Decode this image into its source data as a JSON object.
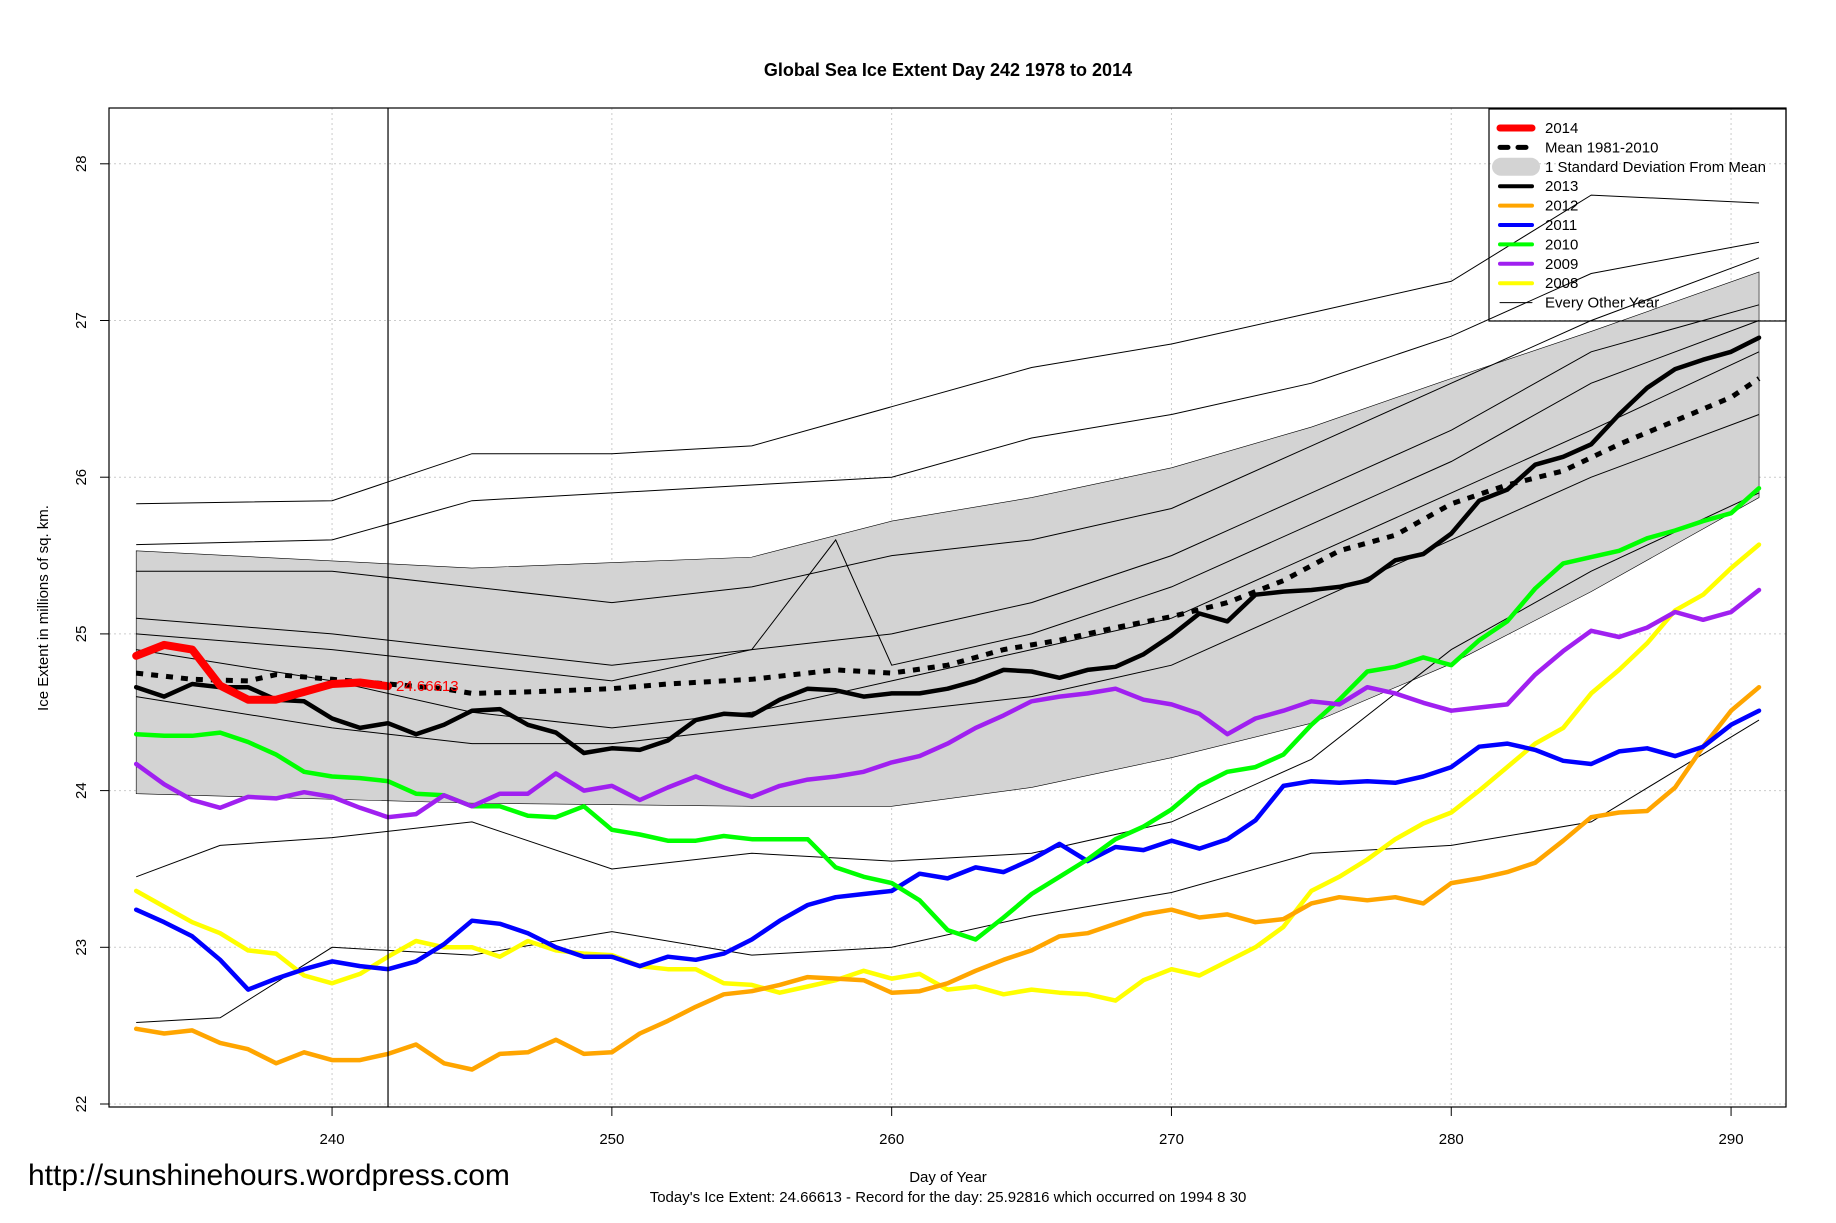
{
  "chart_data": {
    "type": "line",
    "title": "Global Sea Ice Extent Day 242 1978 to 2014",
    "xlabel": "Day of Year",
    "ylabel": "Ice Extent in millions of sq. km.",
    "subtitle": "Today's Ice Extent: 24.66613  - Record for the day: 25.92816 which occurred on 1994 8 30",
    "watermark": "http://sunshinehours.wordpress.com",
    "xlim": [
      233,
      291
    ],
    "ylim": [
      22,
      28
    ],
    "xticks": [
      240,
      250,
      260,
      270,
      280,
      290
    ],
    "yticks": [
      22,
      23,
      24,
      25,
      26,
      27,
      28
    ],
    "grid": true,
    "legend_position": "top-right",
    "current_day": 242,
    "current_value_label": "24.66613",
    "legend": [
      {
        "label": "2014",
        "color": "#ff0000",
        "style": "thick"
      },
      {
        "label": "Mean 1981-2010",
        "color": "#000000",
        "style": "dashed"
      },
      {
        "label": "1 Standard Deviation From Mean",
        "color": "#d3d3d3",
        "style": "band"
      },
      {
        "label": "2013",
        "color": "#000000",
        "style": "line"
      },
      {
        "label": "2012",
        "color": "#ffa500",
        "style": "line"
      },
      {
        "label": "2011",
        "color": "#0000ff",
        "style": "line"
      },
      {
        "label": "2010",
        "color": "#00ff00",
        "style": "line"
      },
      {
        "label": "2009",
        "color": "#a020f0",
        "style": "line"
      },
      {
        "label": "2008",
        "color": "#ffff00",
        "style": "line"
      },
      {
        "label": "Every Other Year",
        "color": "#000000",
        "style": "thin"
      }
    ],
    "sd_band": {
      "x": [
        233,
        245,
        255,
        260,
        265,
        270,
        275,
        280,
        285,
        291
      ],
      "upper": [
        25.53,
        25.42,
        25.49,
        25.72,
        25.87,
        26.06,
        26.32,
        26.63,
        26.93,
        27.31
      ],
      "lower": [
        23.98,
        23.92,
        23.9,
        23.9,
        24.02,
        24.21,
        24.43,
        24.81,
        25.27,
        25.87
      ]
    },
    "other_years": [
      {
        "x": [
          233,
          240,
          245,
          250,
          255,
          260,
          265,
          270,
          275,
          280,
          285,
          291
        ],
        "y": [
          25.83,
          25.85,
          26.15,
          26.15,
          26.2,
          26.45,
          26.7,
          26.85,
          27.05,
          27.25,
          27.8,
          27.75
        ]
      },
      {
        "x": [
          233,
          240,
          245,
          250,
          255,
          260,
          265,
          270,
          275,
          280,
          285,
          291
        ],
        "y": [
          25.57,
          25.6,
          25.85,
          25.9,
          25.95,
          26.0,
          26.25,
          26.4,
          26.6,
          26.9,
          27.3,
          27.5
        ]
      },
      {
        "x": [
          233,
          240,
          245,
          250,
          255,
          260,
          265,
          270,
          275,
          280,
          285,
          291
        ],
        "y": [
          25.4,
          25.4,
          25.3,
          25.2,
          25.3,
          25.5,
          25.6,
          25.8,
          26.2,
          26.6,
          27.0,
          27.4
        ]
      },
      {
        "x": [
          233,
          240,
          245,
          250,
          255,
          260,
          265,
          270,
          275,
          280,
          285,
          291
        ],
        "y": [
          25.1,
          25.0,
          24.9,
          24.8,
          24.9,
          25.0,
          25.2,
          25.5,
          25.9,
          26.3,
          26.8,
          27.1
        ]
      },
      {
        "x": [
          233,
          240,
          245,
          250,
          255,
          260,
          265,
          270,
          275,
          280,
          285,
          291
        ],
        "y": [
          24.9,
          24.7,
          24.5,
          24.4,
          24.5,
          24.7,
          24.9,
          25.1,
          25.5,
          25.9,
          26.3,
          26.8
        ]
      },
      {
        "x": [
          233,
          240,
          245,
          250,
          255,
          260,
          265,
          270,
          275,
          280,
          285,
          291
        ],
        "y": [
          24.6,
          24.4,
          24.3,
          24.3,
          24.4,
          24.5,
          24.6,
          24.8,
          25.2,
          25.6,
          26.0,
          26.4
        ]
      },
      {
        "x": [
          233,
          236,
          240,
          245,
          250,
          255,
          260,
          265,
          270,
          275,
          280,
          285,
          291
        ],
        "y": [
          23.45,
          23.65,
          23.7,
          23.8,
          23.5,
          23.6,
          23.55,
          23.6,
          23.8,
          24.2,
          24.9,
          25.4,
          25.9
        ]
      },
      {
        "x": [
          233,
          236,
          240,
          245,
          250,
          255,
          260,
          265,
          270,
          275,
          280,
          285,
          291
        ],
        "y": [
          22.52,
          22.55,
          23.0,
          22.95,
          23.1,
          22.95,
          23.0,
          23.2,
          23.35,
          23.6,
          23.65,
          23.8,
          24.45
        ]
      },
      {
        "x": [
          233,
          240,
          245,
          250,
          255,
          258,
          260,
          265,
          270,
          275,
          280,
          285,
          291
        ],
        "y": [
          25.0,
          24.9,
          24.8,
          24.7,
          24.9,
          25.6,
          24.8,
          25.0,
          25.3,
          25.7,
          26.1,
          26.6,
          27.0
        ]
      }
    ],
    "series": [
      {
        "name": "Mean 1981-2010",
        "color": "#000000",
        "dash": true,
        "x": [
          233,
          235,
          237,
          238,
          240,
          242,
          244,
          245,
          247,
          250,
          252,
          255,
          258,
          260,
          262,
          264,
          266,
          268,
          270,
          272,
          274,
          276,
          278,
          280,
          282,
          284,
          286,
          288,
          290,
          291
        ],
        "y": [
          24.75,
          24.71,
          24.7,
          24.74,
          24.71,
          24.68,
          24.65,
          24.62,
          24.63,
          24.65,
          24.68,
          24.71,
          24.77,
          24.75,
          24.8,
          24.9,
          24.96,
          25.04,
          25.11,
          25.2,
          25.34,
          25.53,
          25.63,
          25.83,
          25.95,
          26.04,
          26.21,
          26.36,
          26.51,
          26.63
        ]
      },
      {
        "name": "2008",
        "color": "#ffff00",
        "x": [
          233,
          234,
          235,
          236,
          237,
          238,
          239,
          240,
          241,
          242,
          243,
          244,
          245,
          246,
          247,
          248,
          249,
          250,
          251,
          252,
          253,
          254,
          255,
          256,
          257,
          258,
          259,
          260,
          261,
          262,
          263,
          264,
          265,
          266,
          267,
          268,
          269,
          270,
          271,
          272,
          273,
          274,
          275,
          276,
          277,
          278,
          279,
          280,
          281,
          282,
          283,
          284,
          285,
          286,
          287,
          288,
          289,
          290,
          291
        ],
        "y": [
          23.36,
          23.26,
          23.16,
          23.09,
          22.98,
          22.96,
          22.82,
          22.77,
          22.83,
          22.94,
          23.04,
          23.0,
          23.0,
          22.94,
          23.04,
          22.98,
          22.96,
          22.95,
          22.88,
          22.86,
          22.86,
          22.77,
          22.76,
          22.71,
          22.75,
          22.79,
          22.85,
          22.8,
          22.83,
          22.73,
          22.75,
          22.7,
          22.73,
          22.71,
          22.7,
          22.66,
          22.79,
          22.86,
          22.82,
          22.91,
          23.0,
          23.13,
          23.36,
          23.45,
          23.56,
          23.69,
          23.79,
          23.86,
          24.0,
          24.15,
          24.3,
          24.4,
          24.62,
          24.77,
          24.94,
          25.15,
          25.25,
          25.42,
          25.57
        ]
      },
      {
        "name": "2012",
        "color": "#ffa500",
        "x": [
          233,
          234,
          235,
          236,
          237,
          238,
          239,
          240,
          241,
          242,
          243,
          244,
          245,
          246,
          247,
          248,
          249,
          250,
          251,
          252,
          253,
          254,
          255,
          256,
          257,
          258,
          259,
          260,
          261,
          262,
          263,
          264,
          265,
          266,
          267,
          268,
          269,
          270,
          271,
          272,
          273,
          274,
          275,
          276,
          277,
          278,
          279,
          280,
          281,
          282,
          283,
          284,
          285,
          286,
          287,
          288,
          289,
          290,
          291
        ],
        "y": [
          22.48,
          22.45,
          22.47,
          22.39,
          22.35,
          22.26,
          22.33,
          22.28,
          22.28,
          22.32,
          22.38,
          22.26,
          22.22,
          22.32,
          22.33,
          22.41,
          22.32,
          22.33,
          22.45,
          22.53,
          22.62,
          22.7,
          22.72,
          22.76,
          22.81,
          22.8,
          22.79,
          22.71,
          22.72,
          22.77,
          22.85,
          22.92,
          22.98,
          23.07,
          23.09,
          23.15,
          23.21,
          23.24,
          23.19,
          23.21,
          23.16,
          23.18,
          23.28,
          23.32,
          23.3,
          23.32,
          23.28,
          23.41,
          23.44,
          23.48,
          23.54,
          23.68,
          23.83,
          23.86,
          23.87,
          24.02,
          24.28,
          24.51,
          24.66
        ]
      },
      {
        "name": "2011",
        "color": "#0000ff",
        "x": [
          233,
          234,
          235,
          236,
          237,
          238,
          239,
          240,
          241,
          242,
          243,
          244,
          245,
          246,
          247,
          248,
          249,
          250,
          251,
          252,
          253,
          254,
          255,
          256,
          257,
          258,
          259,
          260,
          261,
          262,
          263,
          264,
          265,
          266,
          267,
          268,
          269,
          270,
          271,
          272,
          273,
          274,
          275,
          276,
          277,
          278,
          279,
          280,
          281,
          282,
          283,
          284,
          285,
          286,
          287,
          288,
          289,
          290,
          291
        ],
        "y": [
          23.24,
          23.16,
          23.07,
          22.92,
          22.73,
          22.8,
          22.86,
          22.91,
          22.88,
          22.86,
          22.91,
          23.02,
          23.17,
          23.15,
          23.09,
          23.0,
          22.94,
          22.94,
          22.88,
          22.94,
          22.92,
          22.96,
          23.05,
          23.17,
          23.27,
          23.32,
          23.34,
          23.36,
          23.47,
          23.44,
          23.51,
          23.48,
          23.56,
          23.66,
          23.55,
          23.64,
          23.62,
          23.68,
          23.63,
          23.69,
          23.81,
          24.03,
          24.06,
          24.05,
          24.06,
          24.05,
          24.09,
          24.15,
          24.28,
          24.3,
          24.26,
          24.19,
          24.17,
          24.25,
          24.27,
          24.22,
          24.28,
          24.42,
          24.51
        ]
      },
      {
        "name": "2010",
        "color": "#00ff00",
        "x": [
          233,
          234,
          235,
          236,
          237,
          238,
          239,
          240,
          241,
          242,
          243,
          244,
          245,
          246,
          247,
          248,
          249,
          250,
          251,
          252,
          253,
          254,
          255,
          256,
          257,
          258,
          259,
          260,
          261,
          262,
          263,
          264,
          265,
          266,
          267,
          268,
          269,
          270,
          271,
          272,
          273,
          274,
          275,
          276,
          277,
          278,
          279,
          280,
          281,
          282,
          283,
          284,
          285,
          286,
          287,
          288,
          289,
          290,
          291
        ],
        "y": [
          24.36,
          24.35,
          24.35,
          24.37,
          24.31,
          24.23,
          24.12,
          24.09,
          24.08,
          24.06,
          23.98,
          23.97,
          23.9,
          23.9,
          23.84,
          23.83,
          23.9,
          23.75,
          23.72,
          23.68,
          23.68,
          23.71,
          23.69,
          23.69,
          23.69,
          23.51,
          23.45,
          23.41,
          23.3,
          23.11,
          23.05,
          23.19,
          23.34,
          23.45,
          23.56,
          23.69,
          23.77,
          23.88,
          24.03,
          24.12,
          24.15,
          24.23,
          24.42,
          24.58,
          24.76,
          24.79,
          24.85,
          24.8,
          24.96,
          25.08,
          25.29,
          25.45,
          25.49,
          25.53,
          25.61,
          25.66,
          25.72,
          25.77,
          25.93
        ]
      },
      {
        "name": "2009",
        "color": "#a020f0",
        "x": [
          233,
          234,
          235,
          236,
          237,
          238,
          239,
          240,
          241,
          242,
          243,
          244,
          245,
          246,
          247,
          248,
          249,
          250,
          251,
          252,
          253,
          254,
          255,
          256,
          257,
          258,
          259,
          260,
          261,
          262,
          263,
          264,
          265,
          266,
          267,
          268,
          269,
          270,
          271,
          272,
          273,
          274,
          275,
          276,
          277,
          278,
          279,
          280,
          281,
          282,
          283,
          284,
          285,
          286,
          287,
          288,
          289,
          290,
          291
        ],
        "y": [
          24.17,
          24.04,
          23.94,
          23.89,
          23.96,
          23.95,
          23.99,
          23.96,
          23.89,
          23.83,
          23.85,
          23.97,
          23.9,
          23.98,
          23.98,
          24.11,
          24.0,
          24.03,
          23.94,
          24.02,
          24.09,
          24.02,
          23.96,
          24.03,
          24.07,
          24.09,
          24.12,
          24.18,
          24.22,
          24.3,
          24.4,
          24.48,
          24.57,
          24.6,
          24.62,
          24.65,
          24.58,
          24.55,
          24.49,
          24.36,
          24.46,
          24.51,
          24.57,
          24.55,
          24.66,
          24.62,
          24.56,
          24.51,
          24.53,
          24.55,
          24.74,
          24.89,
          25.02,
          24.98,
          25.04,
          25.14,
          25.09,
          25.14,
          25.28
        ]
      },
      {
        "name": "2013",
        "color": "#000000",
        "x": [
          233,
          234,
          235,
          236,
          237,
          238,
          239,
          240,
          241,
          242,
          243,
          244,
          245,
          246,
          247,
          248,
          249,
          250,
          251,
          252,
          253,
          254,
          255,
          256,
          257,
          258,
          259,
          260,
          261,
          262,
          263,
          264,
          265,
          266,
          267,
          268,
          269,
          270,
          271,
          272,
          273,
          274,
          275,
          276,
          277,
          278,
          279,
          280,
          281,
          282,
          283,
          284,
          285,
          286,
          287,
          288,
          289,
          290,
          291
        ],
        "y": [
          24.66,
          24.6,
          24.68,
          24.66,
          24.66,
          24.58,
          24.57,
          24.46,
          24.4,
          24.43,
          24.36,
          24.42,
          24.51,
          24.52,
          24.42,
          24.37,
          24.24,
          24.27,
          24.26,
          24.32,
          24.45,
          24.49,
          24.48,
          24.58,
          24.65,
          24.64,
          24.6,
          24.62,
          24.62,
          24.65,
          24.7,
          24.77,
          24.76,
          24.72,
          24.77,
          24.79,
          24.87,
          24.99,
          25.13,
          25.08,
          25.25,
          25.27,
          25.28,
          25.3,
          25.34,
          25.47,
          25.51,
          25.64,
          25.85,
          25.92,
          26.08,
          26.13,
          26.21,
          26.4,
          26.57,
          26.69,
          26.75,
          26.8,
          26.89
        ]
      },
      {
        "name": "2014",
        "color": "#ff0000",
        "x": [
          233,
          234,
          235,
          236,
          237,
          238,
          239,
          240,
          241,
          242
        ],
        "y": [
          24.86,
          24.93,
          24.9,
          24.67,
          24.58,
          24.58,
          24.63,
          24.68,
          24.69,
          24.66613
        ]
      }
    ]
  }
}
